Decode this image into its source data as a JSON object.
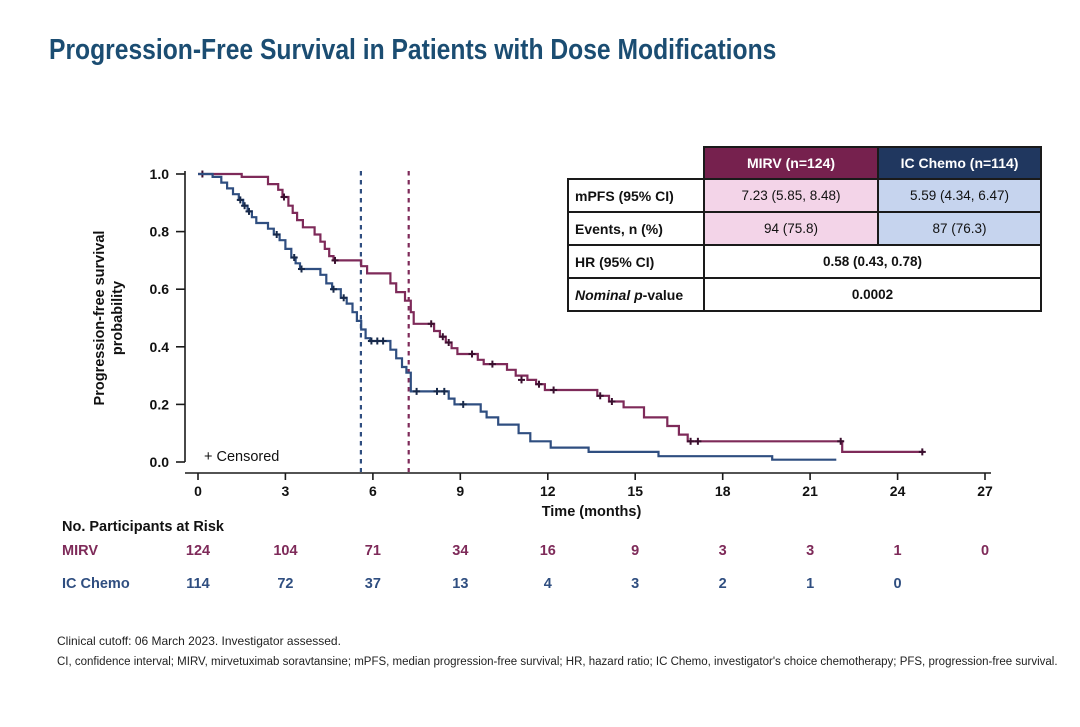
{
  "title": "Progression-Free Survival in Patients with Dose Modifications",
  "colors": {
    "title": "#1B4D72",
    "mirv": "#7E2A59",
    "ic": "#2F4E80",
    "mirv-dark": "#76214E",
    "ic-dark": "#20375F",
    "mirv-light": "#F3D4E8",
    "ic-light": "#C6D4EE",
    "axis": "#1a1a1a"
  },
  "stats_table": {
    "col_headers": [
      {
        "label": "MIRV (n=124)"
      },
      {
        "label": "IC Chemo (n=114)"
      }
    ],
    "rows": [
      {
        "label": "mPFS (95% CI)",
        "mirv": "7.23 (5.85, 8.48)",
        "ic": "5.59 (4.34, 6.47)"
      },
      {
        "label": "Events, n (%)",
        "mirv": "94 (75.8)",
        "ic": "87 (76.3)"
      }
    ],
    "hr_row": {
      "label": "HR (95% CI)",
      "value": "0.58 (0.43, 0.78)"
    },
    "p_row": {
      "label_italic": "Nominal p",
      "label_rest": "-value",
      "value": "0.0002"
    }
  },
  "chart_data": {
    "type": "line",
    "subtype": "kaplan-meier-step",
    "xlabel": "Time (months)",
    "ylabel_lines": [
      "Progression-free survival",
      "probability"
    ],
    "xlim": [
      0,
      27
    ],
    "ylim": [
      0.0,
      1.0
    ],
    "xticks": [
      0,
      3,
      6,
      9,
      12,
      15,
      18,
      21,
      24,
      27
    ],
    "yticks": [
      0.0,
      0.2,
      0.4,
      0.6,
      0.8,
      1.0
    ],
    "grid": false,
    "censored_legend": "+ Censored",
    "series": [
      {
        "id": "mirv",
        "name": "MIRV",
        "color": "#7E2A59",
        "censor_color": "#3A0F2E",
        "median": 7.23,
        "steps": [
          [
            0,
            1.0
          ],
          [
            1.5,
            0.99
          ],
          [
            2.4,
            0.965
          ],
          [
            2.75,
            0.945
          ],
          [
            2.9,
            0.92
          ],
          [
            3.1,
            0.89
          ],
          [
            3.25,
            0.865
          ],
          [
            3.4,
            0.84
          ],
          [
            3.6,
            0.815
          ],
          [
            4.0,
            0.79
          ],
          [
            4.2,
            0.765
          ],
          [
            4.35,
            0.74
          ],
          [
            4.5,
            0.715
          ],
          [
            4.65,
            0.7
          ],
          [
            5.6,
            0.68
          ],
          [
            5.8,
            0.655
          ],
          [
            6.6,
            0.62
          ],
          [
            6.8,
            0.59
          ],
          [
            7.1,
            0.56
          ],
          [
            7.3,
            0.52
          ],
          [
            7.4,
            0.48
          ],
          [
            8.1,
            0.455
          ],
          [
            8.3,
            0.435
          ],
          [
            8.5,
            0.415
          ],
          [
            8.7,
            0.395
          ],
          [
            8.9,
            0.375
          ],
          [
            9.6,
            0.355
          ],
          [
            9.8,
            0.34
          ],
          [
            10.6,
            0.32
          ],
          [
            10.9,
            0.3
          ],
          [
            11.3,
            0.285
          ],
          [
            11.6,
            0.27
          ],
          [
            11.9,
            0.25
          ],
          [
            13.7,
            0.23
          ],
          [
            14.1,
            0.21
          ],
          [
            14.6,
            0.19
          ],
          [
            15.3,
            0.155
          ],
          [
            16.1,
            0.125
          ],
          [
            16.5,
            0.095
          ],
          [
            16.8,
            0.072
          ],
          [
            22.1,
            0.035
          ],
          [
            24.9,
            0.035
          ]
        ],
        "censors": [
          [
            0.15,
            1.0
          ],
          [
            2.95,
            0.92
          ],
          [
            4.7,
            0.7
          ],
          [
            8.0,
            0.48
          ],
          [
            8.4,
            0.435
          ],
          [
            8.6,
            0.415
          ],
          [
            9.4,
            0.375
          ],
          [
            10.1,
            0.34
          ],
          [
            11.1,
            0.285
          ],
          [
            11.7,
            0.27
          ],
          [
            12.2,
            0.25
          ],
          [
            13.8,
            0.23
          ],
          [
            14.2,
            0.21
          ],
          [
            16.9,
            0.072
          ],
          [
            17.15,
            0.072
          ],
          [
            22.05,
            0.072
          ],
          [
            24.85,
            0.035
          ]
        ]
      },
      {
        "id": "ic-chemo",
        "name": "IC Chemo",
        "color": "#2F4E80",
        "censor_color": "#17294A",
        "median": 5.59,
        "steps": [
          [
            0,
            1.0
          ],
          [
            0.5,
            0.99
          ],
          [
            0.8,
            0.97
          ],
          [
            1.0,
            0.95
          ],
          [
            1.2,
            0.93
          ],
          [
            1.4,
            0.91
          ],
          [
            1.55,
            0.89
          ],
          [
            1.7,
            0.87
          ],
          [
            1.85,
            0.85
          ],
          [
            2.0,
            0.83
          ],
          [
            2.4,
            0.81
          ],
          [
            2.6,
            0.79
          ],
          [
            2.8,
            0.77
          ],
          [
            3.0,
            0.74
          ],
          [
            3.2,
            0.71
          ],
          [
            3.35,
            0.69
          ],
          [
            3.5,
            0.67
          ],
          [
            4.2,
            0.65
          ],
          [
            4.4,
            0.62
          ],
          [
            4.6,
            0.6
          ],
          [
            4.9,
            0.57
          ],
          [
            5.1,
            0.55
          ],
          [
            5.3,
            0.52
          ],
          [
            5.45,
            0.49
          ],
          [
            5.6,
            0.46
          ],
          [
            5.75,
            0.43
          ],
          [
            5.9,
            0.42
          ],
          [
            6.6,
            0.39
          ],
          [
            6.8,
            0.36
          ],
          [
            7.0,
            0.33
          ],
          [
            7.15,
            0.31
          ],
          [
            7.3,
            0.245
          ],
          [
            8.6,
            0.22
          ],
          [
            8.8,
            0.2
          ],
          [
            9.7,
            0.175
          ],
          [
            9.9,
            0.155
          ],
          [
            10.3,
            0.13
          ],
          [
            11.0,
            0.1
          ],
          [
            11.4,
            0.072
          ],
          [
            12.1,
            0.05
          ],
          [
            13.4,
            0.035
          ],
          [
            15.8,
            0.02
          ],
          [
            19.7,
            0.008
          ],
          [
            21.9,
            0.008
          ]
        ],
        "censors": [
          [
            1.45,
            0.91
          ],
          [
            1.6,
            0.89
          ],
          [
            1.75,
            0.87
          ],
          [
            2.7,
            0.79
          ],
          [
            3.3,
            0.71
          ],
          [
            3.55,
            0.67
          ],
          [
            4.65,
            0.6
          ],
          [
            5.0,
            0.57
          ],
          [
            5.95,
            0.42
          ],
          [
            6.15,
            0.42
          ],
          [
            6.35,
            0.42
          ],
          [
            7.5,
            0.245
          ],
          [
            8.2,
            0.245
          ],
          [
            8.45,
            0.245
          ],
          [
            9.1,
            0.2
          ]
        ]
      }
    ]
  },
  "risk_table": {
    "title": "No. Participants at Risk",
    "rows": [
      {
        "id": "mirv",
        "label": "MIRV",
        "color": "#7E2A59",
        "counts": [
          124,
          104,
          71,
          34,
          16,
          9,
          3,
          3,
          1,
          0
        ]
      },
      {
        "id": "ic-chemo",
        "label": "IC Chemo",
        "color": "#2F4E80",
        "counts": [
          114,
          72,
          37,
          13,
          4,
          3,
          2,
          1,
          0
        ]
      }
    ]
  },
  "footnotes": [
    "Clinical cutoff: 06 March 2023. Investigator assessed.",
    "CI, confidence interval; MIRV, mirvetuximab soravtansine; mPFS, median progression-free survival; HR, hazard ratio; IC Chemo, investigator's choice chemotherapy; PFS, progression-free survival."
  ]
}
